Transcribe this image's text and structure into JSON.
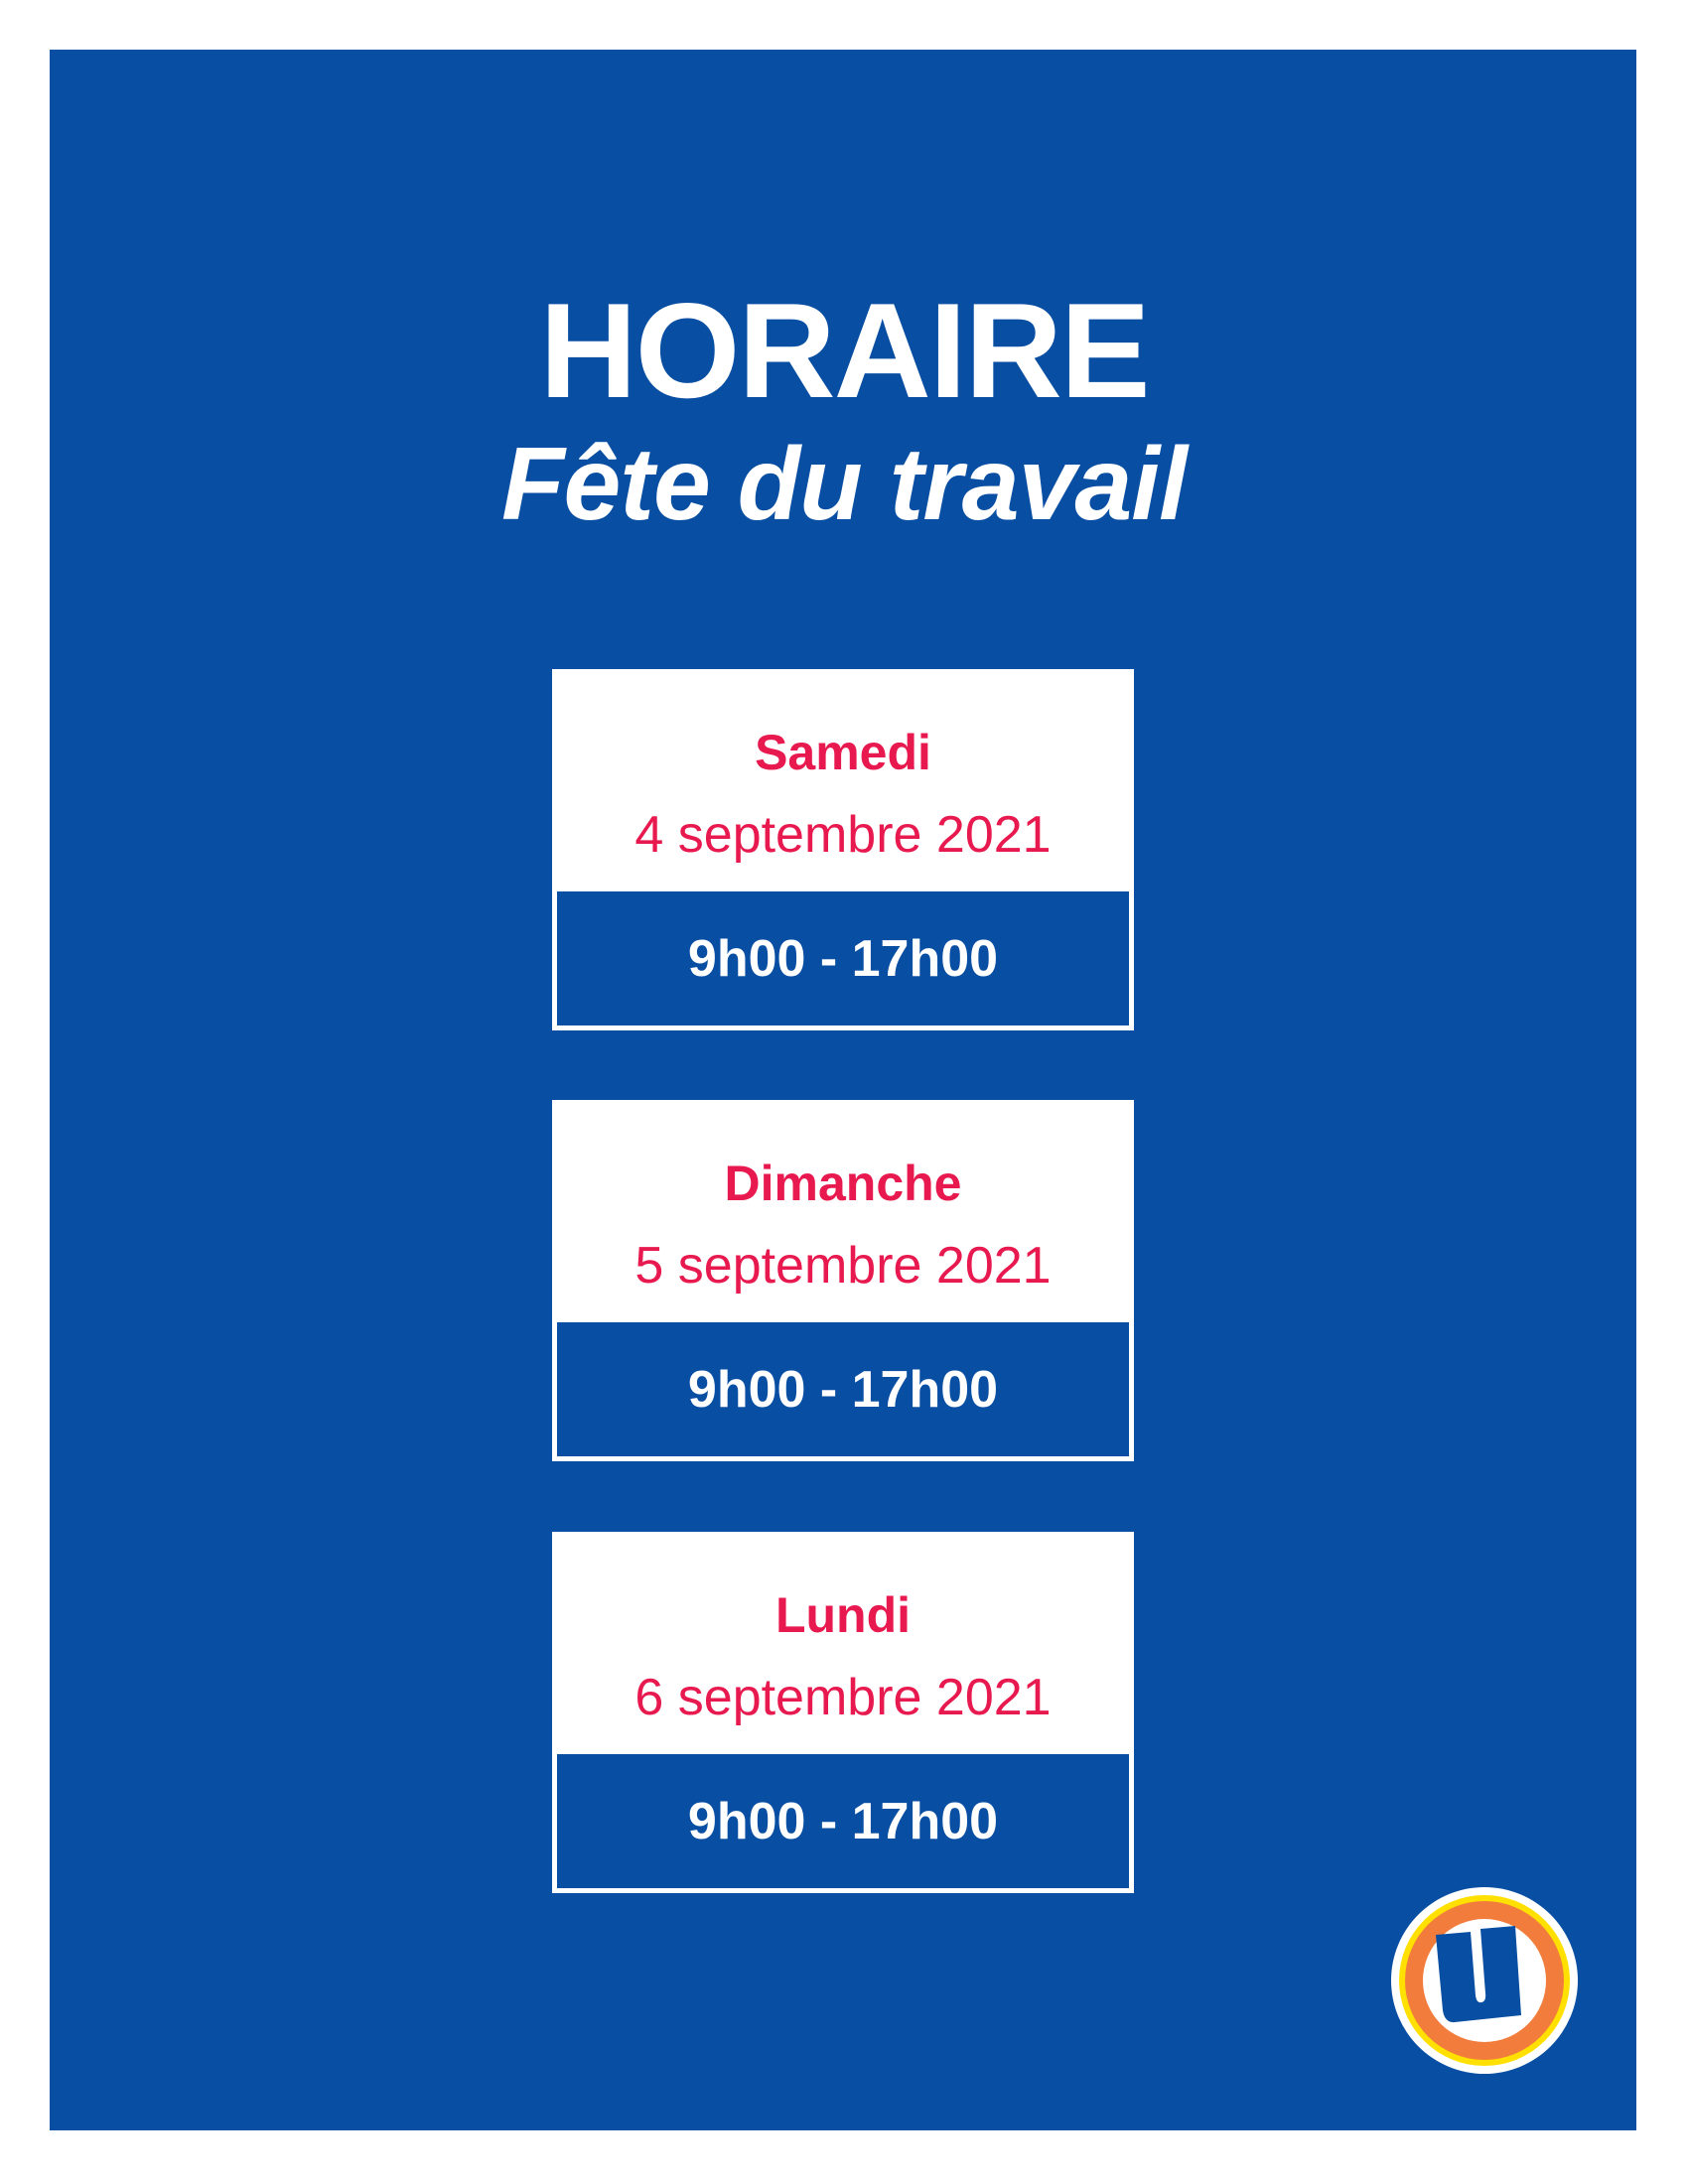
{
  "header": {
    "title": "HORAIRE",
    "subtitle": "Fête du travail"
  },
  "schedule": [
    {
      "day": "Samedi",
      "date": "4 septembre 2021",
      "hours": "9h00 - 17h00"
    },
    {
      "day": "Dimanche",
      "date": "5 septembre 2021",
      "hours": "9h00 - 17h00"
    },
    {
      "day": "Lundi",
      "date": "6 septembre 2021",
      "hours": "9h00 - 17h00"
    }
  ],
  "colors": {
    "background": "#084ea2",
    "accent": "#e8194f",
    "logo_orange": "#f27c3c",
    "logo_yellow": "#ffe000"
  },
  "logo": {
    "icon": "u-store-logo",
    "letter": "U"
  }
}
